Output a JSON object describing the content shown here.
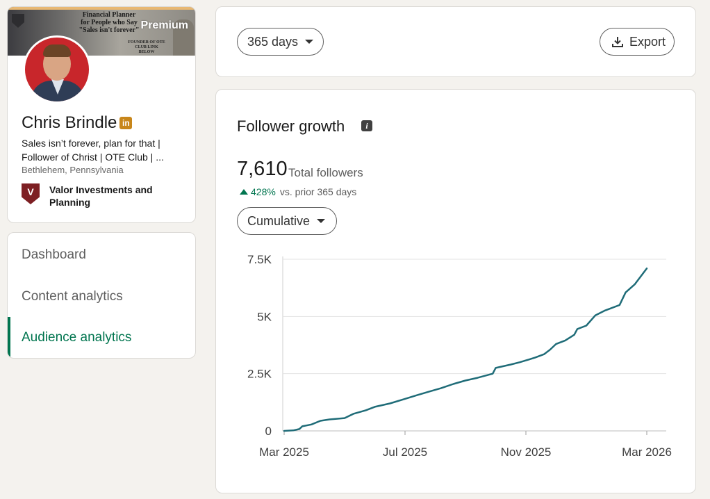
{
  "profile": {
    "banner_line1": "Financial Planner",
    "banner_line2": "for People who Say",
    "banner_line3": "\"Sales isn't forever\"",
    "banner_sub": "FOUNDER OF OTE CLUB LINK BELOW",
    "premium_label": "Premium",
    "name": "Chris Brindle",
    "badge": "in",
    "headline": "Sales isn’t forever, plan for that | Follower of Christ | OTE Club | ...",
    "location": "Bethlehem, Pennsylvania",
    "company_logo_letter": "V",
    "company": "Valor Investments and Planning"
  },
  "nav": {
    "items": [
      {
        "label": "Dashboard"
      },
      {
        "label": "Content analytics"
      },
      {
        "label": "Audience analytics"
      }
    ],
    "active_index": 2
  },
  "toolbar": {
    "range_label": "365 days",
    "export_label": "Export"
  },
  "follower_growth": {
    "title": "Follower growth",
    "info_icon": "i",
    "total": "7,610",
    "total_label": "Total followers",
    "delta": "428%",
    "delta_label": "vs. prior 365 days",
    "mode_label": "Cumulative"
  },
  "colors": {
    "accent": "#01754f",
    "line": "#1f6c78",
    "premium_gold": "#c8861a"
  },
  "chart_data": {
    "type": "line",
    "title": "",
    "xlabel": "",
    "ylabel": "",
    "y_ticks": [
      {
        "value": 0,
        "label": "0"
      },
      {
        "value": 2500,
        "label": "2.5K"
      },
      {
        "value": 5000,
        "label": "5K"
      },
      {
        "value": 7500,
        "label": "7.5K"
      }
    ],
    "x_ticks": [
      {
        "value": 0,
        "label": "Mar 2025"
      },
      {
        "value": 4,
        "label": "Jul 2025"
      },
      {
        "value": 8,
        "label": "Nov 2025"
      },
      {
        "value": 12,
        "label": "Mar 2026"
      }
    ],
    "ylim": [
      0,
      7500
    ],
    "xlim": [
      0,
      12.6
    ],
    "grid": "horizontal",
    "series": [
      {
        "x": [
          0,
          0.3,
          0.5,
          0.6,
          0.9,
          1.2,
          1.5,
          2.0,
          2.3,
          2.7,
          3.0,
          3.5,
          4.0,
          4.4,
          4.8,
          5.2,
          5.6,
          6.0,
          6.4,
          6.9,
          7.0,
          7.5,
          7.8,
          8.0,
          8.3,
          8.6,
          8.8,
          9.0,
          9.3,
          9.6,
          9.7,
          10.0,
          10.3,
          10.6,
          10.8,
          11.1,
          11.3,
          11.6,
          11.8,
          12.0
        ],
        "y": [
          0,
          20,
          80,
          200,
          280,
          440,
          500,
          560,
          750,
          900,
          1050,
          1200,
          1400,
          1560,
          1720,
          1870,
          2050,
          2200,
          2320,
          2500,
          2750,
          2900,
          3000,
          3080,
          3200,
          3350,
          3550,
          3800,
          3950,
          4200,
          4450,
          4600,
          5050,
          5250,
          5350,
          5500,
          6050,
          6400,
          6750,
          7100
        ]
      }
    ]
  }
}
